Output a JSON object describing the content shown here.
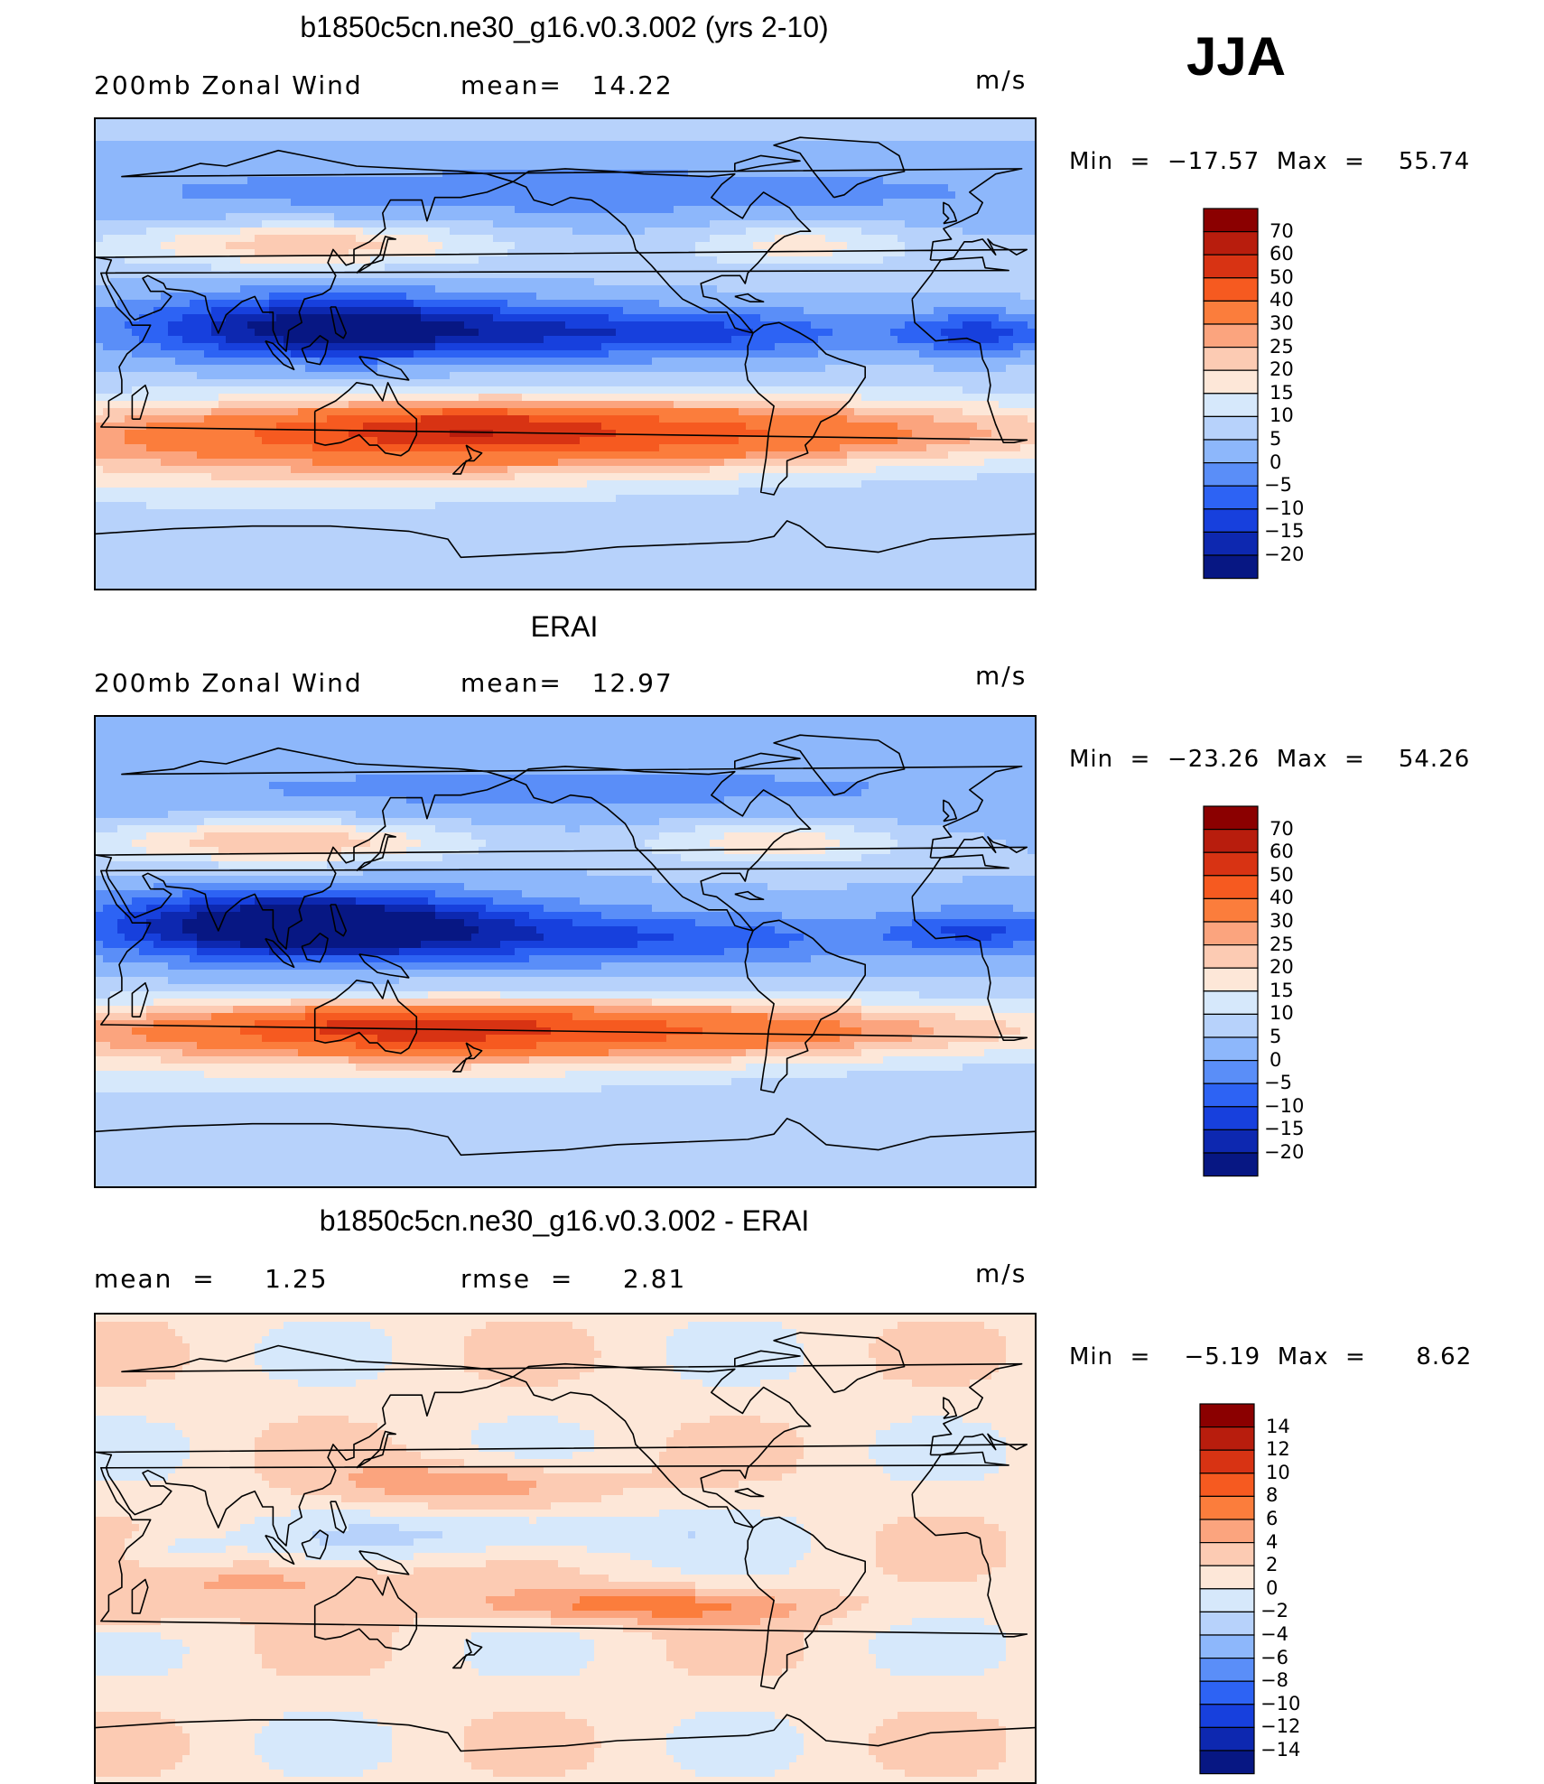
{
  "season": "JJA",
  "panels": [
    {
      "title": "b1850c5cn.ne30_g16.v0.3.002 (yrs 2-10)",
      "left_label": "200mb Zonal Wind",
      "center_label": "mean=   14.22",
      "units": "m/s",
      "minmax": "Min  =  −17.57  Max  =    55.74",
      "colorbar_labels": [
        "70",
        "60",
        "50",
        "40",
        "30",
        "25",
        "20",
        "15",
        "10",
        "5",
        "0",
        "−5",
        "−10",
        "−15",
        "−20"
      ],
      "colorbar_colors": [
        "#8b0000",
        "#b81d0d",
        "#d83313",
        "#f65a20",
        "#fb7d3c",
        "#fba47e",
        "#fccbb3",
        "#fde7d8",
        "#d6e8fb",
        "#b7d2fb",
        "#8db7fb",
        "#5a8ef8",
        "#2d63f4",
        "#1740dd",
        "#0d28b0",
        "#071783"
      ]
    },
    {
      "title": "ERAI",
      "left_label": "200mb Zonal Wind",
      "center_label": "mean=   12.97",
      "units": "m/s",
      "minmax": "Min  =  −23.26  Max  =    54.26",
      "colorbar_labels": [
        "70",
        "60",
        "50",
        "40",
        "30",
        "25",
        "20",
        "15",
        "10",
        "5",
        "0",
        "−5",
        "−10",
        "−15",
        "−20"
      ],
      "colorbar_colors": [
        "#8b0000",
        "#b81d0d",
        "#d83313",
        "#f65a20",
        "#fb7d3c",
        "#fba47e",
        "#fccbb3",
        "#fde7d8",
        "#d6e8fb",
        "#b7d2fb",
        "#8db7fb",
        "#5a8ef8",
        "#2d63f4",
        "#1740dd",
        "#0d28b0",
        "#071783"
      ]
    },
    {
      "title": "b1850c5cn.ne30_g16.v0.3.002 - ERAI",
      "left_label": "mean  =     1.25",
      "center_label": "rmse  =     2.81",
      "units": "m/s",
      "minmax": "Min  =    −5.19  Max  =      8.62",
      "colorbar_labels": [
        "14",
        "12",
        "10",
        "8",
        "6",
        "4",
        "2",
        "0",
        "−2",
        "−4",
        "−6",
        "−8",
        "−10",
        "−12",
        "−14"
      ],
      "colorbar_colors": [
        "#8b0000",
        "#b81d0d",
        "#d83313",
        "#f65a20",
        "#fb7d3c",
        "#fba47e",
        "#fccbb3",
        "#fde7d8",
        "#d6e8fb",
        "#b7d2fb",
        "#8db7fb",
        "#5a8ef8",
        "#2d63f4",
        "#1740dd",
        "#0d28b0",
        "#071783"
      ]
    }
  ]
}
